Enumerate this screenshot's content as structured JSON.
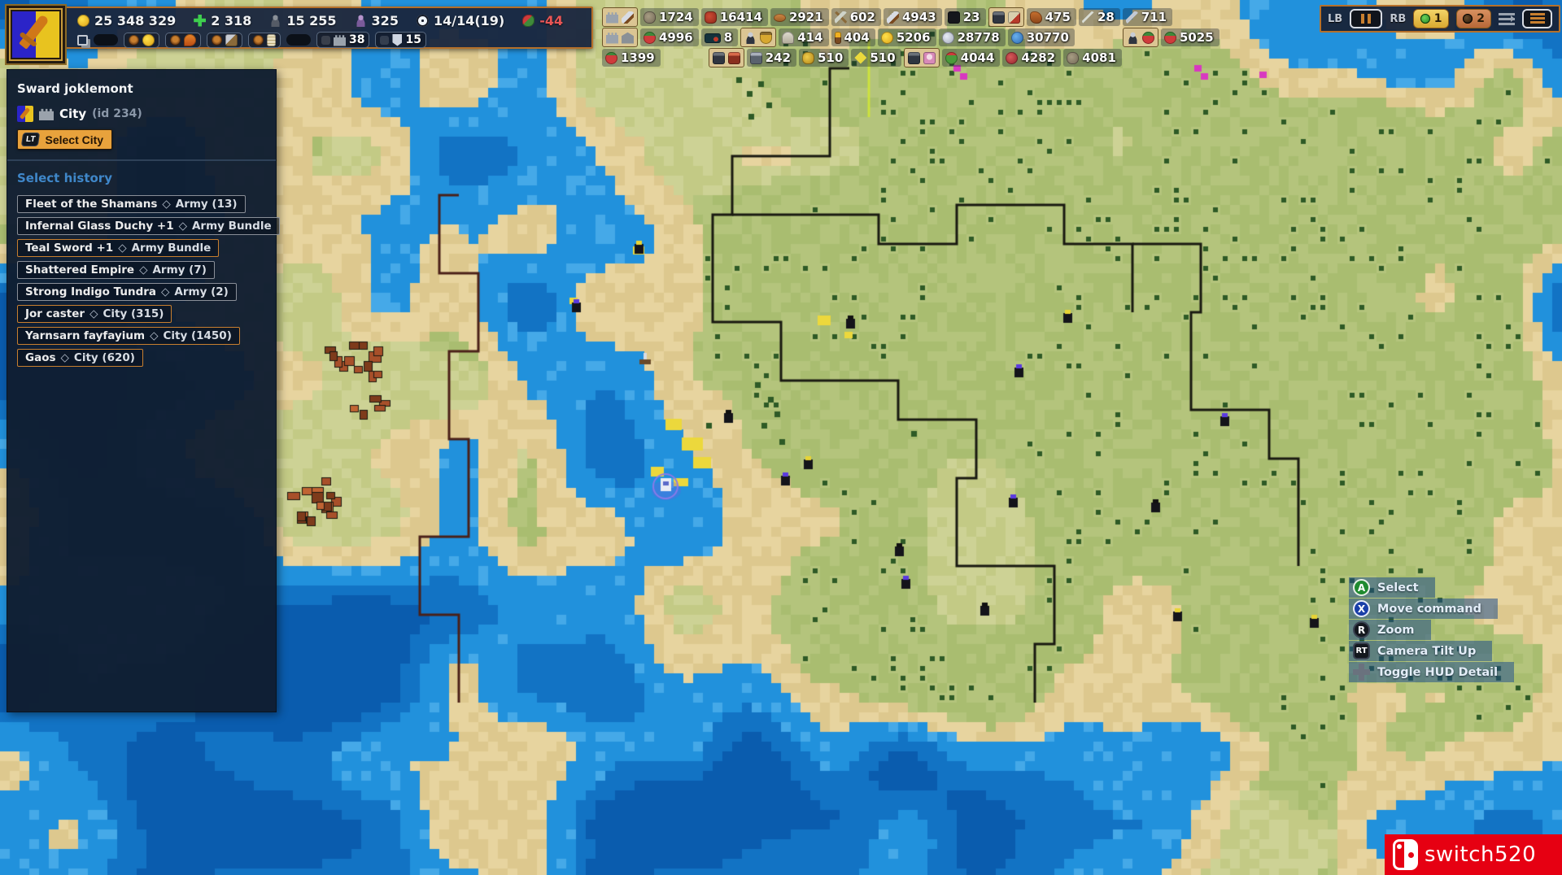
{
  "colors": {
    "accent_orange": "#e8a23c",
    "panel_border": "#b5702a",
    "heading_blue": "#3f87c9",
    "negative_red": "#e85555",
    "watermark_red": "#e60012"
  },
  "flag": {
    "left": "#2b24c8",
    "right": "#e8c31f",
    "sword": "#d07818"
  },
  "map_palette": {
    "deep": "#0a5cae",
    "mid": "#1273c4",
    "water": "#2191dc",
    "water_light": "#45a9e8",
    "sand": "#e7d49f",
    "sand2": "#ddc88e",
    "plain": "#cdd295",
    "plain2": "#c3ca85",
    "green": "#b4c47c",
    "green2": "#a9bd70",
    "forest": "#2e5a26",
    "border_dark": "#191911",
    "border_red": "#4a2018",
    "border_yellow": "#cde23c",
    "city": "#a8502a",
    "city_dark": "#7e3b1b",
    "city_light": "#c06433",
    "road_yellow": "#ecd83c",
    "select_ring": "#8a7ae8"
  },
  "topbar": {
    "resources": [
      {
        "icon": "gold-icon",
        "value": "25 348 329"
      },
      {
        "icon": "mana-icon",
        "value": "2 318"
      },
      {
        "icon": "population-icon",
        "value": "15 255"
      },
      {
        "icon": "followers-icon",
        "value": "325"
      },
      {
        "icon": "time-icon",
        "value": "14/14(19)"
      },
      {
        "icon": "festival-icon",
        "value": "-44",
        "negative": true
      }
    ],
    "quick_slots": [
      {
        "icon": "clone-icon",
        "clickable": true
      },
      {
        "icon": "empty-slot",
        "clickable": true
      },
      {
        "icon": "dot-icon",
        "icon2": "coins-icon",
        "framed": true,
        "clickable": true
      },
      {
        "icon": "dot-icon",
        "icon2": "fire-icon",
        "framed": true,
        "clickable": true
      },
      {
        "icon": "dot-icon",
        "icon2": "axe-icon",
        "framed": true,
        "clickable": true
      },
      {
        "icon": "dot-icon",
        "icon2": "scroll-icon",
        "framed": true,
        "clickable": true
      },
      {
        "icon": "empty-slot",
        "clickable": true
      },
      {
        "icon": "ghost-icon",
        "icon2": "castle-icon",
        "value": "38",
        "framed": true,
        "clickable": true
      },
      {
        "icon": "ghost-icon",
        "icon2": "shield-icon",
        "value": "15",
        "framed": true,
        "clickable": true
      }
    ]
  },
  "resource_rows": {
    "row1": [
      {
        "icon": "castle-icon",
        "icon2": "sword-icon",
        "boxed": true,
        "clickable": true
      },
      {
        "icon": "rock-icon",
        "value": "1724"
      },
      {
        "icon": "crimson-icon",
        "value": "16414"
      },
      {
        "icon": "copper-icon",
        "value": "2921"
      },
      {
        "icon": "pickaxe-icon",
        "value": "602"
      },
      {
        "icon": "sword-icon",
        "value": "4943"
      },
      {
        "icon": "darkitem-icon",
        "value": "23"
      },
      {
        "icon": "unit-icon",
        "icon2": "banner-icon",
        "boxed": true,
        "clickable": true
      },
      {
        "icon": "gauntlet-icon",
        "value": "475"
      },
      {
        "icon": "spear-icon",
        "value": "28"
      },
      {
        "icon": "blade-icon",
        "value": "711"
      }
    ],
    "row2": [
      {
        "icon": "castle-icon",
        "icon2": "temple-icon",
        "boxed": true,
        "clickable": true
      },
      {
        "icon": "berries-icon",
        "value": "4996"
      },
      {
        "icon": "darkchip-icon",
        "value": "8"
      },
      {
        "icon": "person-icon",
        "icon2": "goldbag-icon",
        "boxed": true,
        "clickable": true
      },
      {
        "icon": "helmet-icon",
        "value": "414"
      },
      {
        "icon": "torch-icon",
        "value": "404"
      },
      {
        "icon": "coins-icon",
        "value": "5206"
      },
      {
        "icon": "silver-icon",
        "value": "28778"
      },
      {
        "icon": "bluecoin-icon",
        "value": "30770"
      },
      {
        "icon": "person-icon",
        "icon2": "berries-icon",
        "boxed": true,
        "gap": true,
        "clickable": true
      },
      {
        "icon": "berries-icon",
        "value": "5025"
      }
    ],
    "row3": [
      {
        "icon": "redberries-icon",
        "value": "1399"
      },
      {
        "icon": "unit-icon",
        "icon2": "redunit-icon",
        "boxed": true,
        "gap": true,
        "clickable": true
      },
      {
        "icon": "grayunit-icon",
        "value": "242"
      },
      {
        "icon": "goldnugget-icon",
        "value": "510"
      },
      {
        "icon": "yellowgem-icon",
        "value": "510"
      },
      {
        "icon": "unit-icon",
        "icon2": "pinkface-icon",
        "boxed": true,
        "clickable": true
      },
      {
        "icon": "greenberries-icon",
        "value": "4044"
      },
      {
        "icon": "redfruit-icon",
        "value": "4282"
      },
      {
        "icon": "rock-icon",
        "value": "4081"
      }
    ]
  },
  "topright": {
    "lb_label": "LB",
    "rb_label": "RB",
    "badge1": "1",
    "badge2": "2"
  },
  "side_panel": {
    "title": "Sward joklemont",
    "type_label": "City",
    "id_label": "(id 234)",
    "select_button_key": "LT",
    "select_button_label": "Select City",
    "history_title": "Select history",
    "history": [
      {
        "label": "Fleet of the Shamans",
        "sep": "◇",
        "detail": "Army (13)",
        "accent": "gray"
      },
      {
        "label": "Infernal Glass Duchy +1",
        "sep": "◇",
        "detail": "Army Bundle",
        "accent": "gray"
      },
      {
        "label": "Teal Sword +1",
        "sep": "◇",
        "detail": "Army Bundle",
        "accent": "orange"
      },
      {
        "label": "Shattered Empire",
        "sep": "◇",
        "detail": "Army (7)",
        "accent": "gray"
      },
      {
        "label": "Strong Indigo Tundra",
        "sep": "◇",
        "detail": "Army (2)",
        "accent": "gray"
      },
      {
        "label": "Jor caster",
        "sep": "◇",
        "detail": "City (315)",
        "accent": "orange"
      },
      {
        "label": "Yarnsarn fayfayium",
        "sep": "◇",
        "detail": "City (1450)",
        "accent": "orange"
      },
      {
        "label": "Gaos",
        "sep": "◇",
        "detail": "City (620)",
        "accent": "orange"
      }
    ]
  },
  "hints": {
    "items": [
      {
        "key": "A",
        "icon": "a-button-icon",
        "label": "Select"
      },
      {
        "key": "X",
        "icon": "x-button-icon",
        "label": "Move command"
      },
      {
        "key": "R",
        "icon": "r-stick-icon",
        "label": "Zoom"
      },
      {
        "key": "RT",
        "icon": "rt-button-icon",
        "label": "Camera Tilt Up"
      },
      {
        "key": "",
        "icon": "dpad-icon",
        "label": "Toggle HUD Detail"
      }
    ]
  },
  "watermark": {
    "text": "switch520"
  }
}
